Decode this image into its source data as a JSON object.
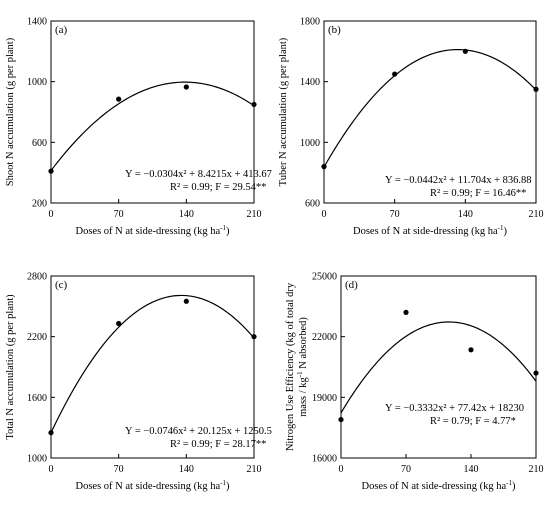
{
  "chart_data": [
    {
      "type": "scatter",
      "panel_label": "(a)",
      "xlabel": "Doses of N at side-dressing (kg ha",
      "xlabel_sup": "-1",
      "xlabel_end": ")",
      "ylabel": "Shoot N accumulation (g per plant)",
      "xticks": [
        0,
        70,
        140,
        210
      ],
      "yticks": [
        200,
        600,
        1000,
        1400
      ],
      "xlim": [
        0,
        210
      ],
      "ylim": [
        200,
        1400
      ],
      "points": {
        "x": [
          0,
          70,
          140,
          210
        ],
        "y": [
          410,
          885,
          965,
          850
        ]
      },
      "fit": {
        "a": -0.0304,
        "b": 8.4215,
        "c": 413.67
      },
      "equation": "Y = −0.0304x² + 8.4215x + 413.67",
      "stats": "R² = 0.99; F = 29.54**"
    },
    {
      "type": "scatter",
      "panel_label": "(b)",
      "xlabel": "Doses of N at side-dressing (kg ha",
      "xlabel_sup": "-1",
      "xlabel_end": ")",
      "ylabel": "Tuber N accumulation (g per plant)",
      "xticks": [
        0,
        70,
        140,
        210
      ],
      "yticks": [
        600,
        1000,
        1400,
        1800
      ],
      "xlim": [
        0,
        210
      ],
      "ylim": [
        600,
        1800
      ],
      "points": {
        "x": [
          0,
          70,
          140,
          210
        ],
        "y": [
          840,
          1450,
          1600,
          1350
        ]
      },
      "fit": {
        "a": -0.0442,
        "b": 11.704,
        "c": 836.88
      },
      "equation": "Y = −0.0442x² + 11.704x + 836.88",
      "stats": "R² = 0.99; F = 16.46**"
    },
    {
      "type": "scatter",
      "panel_label": "(c)",
      "xlabel": "Doses of N at side-dressing (kg ha",
      "xlabel_sup": "-1",
      "xlabel_end": ")",
      "ylabel": "Total N accumulation (g per plant)",
      "xticks": [
        0,
        70,
        140,
        210
      ],
      "yticks": [
        1000,
        1600,
        2200,
        2800
      ],
      "xlim": [
        0,
        210
      ],
      "ylim": [
        1000,
        2800
      ],
      "points": {
        "x": [
          0,
          70,
          140,
          210
        ],
        "y": [
          1250,
          2330,
          2550,
          2200
        ]
      },
      "fit": {
        "a": -0.0746,
        "b": 20.125,
        "c": 1250.5
      },
      "equation": "Y = −0.0746x² + 20.125x + 1250.5",
      "stats": "R² = 0.99; F = 28.17**"
    },
    {
      "type": "scatter",
      "panel_label": "(d)",
      "xlabel": "Doses of N at side-dressing (kg ha",
      "xlabel_sup": "-1",
      "xlabel_end": ")",
      "ylabel": "Nitrogen Use Efficiency (kg of total dry",
      "ylabel2": "mass / kg",
      "ylabel2_sup": "-1",
      "ylabel2_end": " N absorbed)",
      "xticks": [
        0,
        70,
        140,
        210
      ],
      "yticks": [
        16000,
        19000,
        22000,
        25000
      ],
      "xlim": [
        0,
        210
      ],
      "ylim": [
        16000,
        25000
      ],
      "points": {
        "x": [
          0,
          70,
          140,
          210
        ],
        "y": [
          17900,
          23200,
          21350,
          20200
        ]
      },
      "fit": {
        "a": -0.3332,
        "b": 77.42,
        "c": 18230
      },
      "equation": "Y = −0.3332x² + 77.42x + 18230",
      "stats": "R² = 0.79; F = 4.77*"
    }
  ]
}
